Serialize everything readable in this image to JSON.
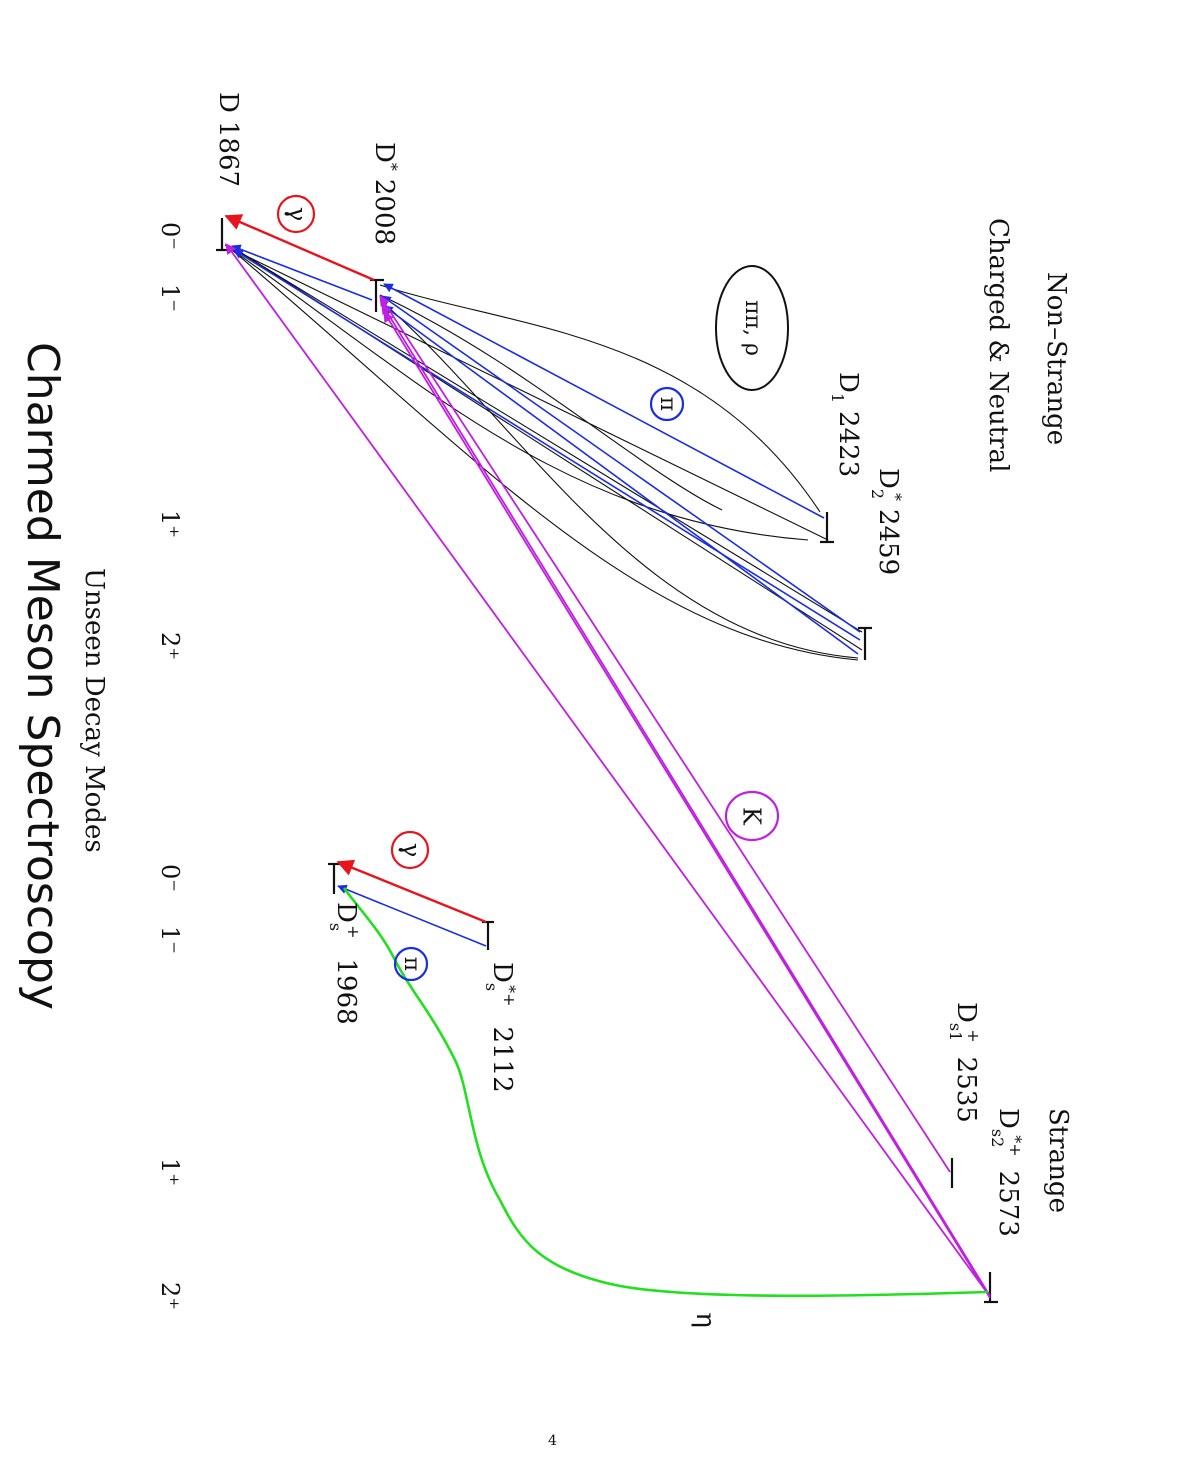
{
  "headers": {
    "nonstrange_line1": "Non–Strange",
    "nonstrange_line2": "Charged & Neutral",
    "strange": "Strange"
  },
  "title": "Charmed Meson Spectroscopy",
  "subtitle": "Unseen Decay Modes",
  "page_number": "4",
  "jp_labels": {
    "left": [
      "0⁻",
      "1⁻",
      "1⁺",
      "2⁺"
    ],
    "right": [
      "0⁻",
      "1⁻",
      "1⁺",
      "2⁺"
    ]
  },
  "states": {
    "D": {
      "name": "D",
      "mass": "1867"
    },
    "Dstar": {
      "name": "D",
      "sup": "*",
      "mass": "2008"
    },
    "D1": {
      "name": "D",
      "sub": "1",
      "mass": "2423"
    },
    "D2star": {
      "name": "D",
      "sub": "2",
      "sup": "*",
      "mass": "2459"
    },
    "Ds": {
      "name": "D",
      "sub": "s",
      "sup": "+",
      "mass": "1968"
    },
    "Dsstar": {
      "name": "D",
      "sub": "s",
      "sup": "*+",
      "mass": "2112"
    },
    "Ds1": {
      "name": "D",
      "sub": "s1",
      "sup": "+",
      "mass": "2535"
    },
    "Ds2star": {
      "name": "D",
      "sub": "s2",
      "sup": "*+",
      "mass": "2573"
    }
  },
  "annotations": {
    "gamma_ns": "γ",
    "gamma_s": "γ",
    "pi_ns": "π",
    "pi_s": "π",
    "pipi_rho": "ππ, ρ",
    "kaon": "K",
    "eta": "η"
  },
  "colors": {
    "gamma": "#e8141c",
    "pion": "#1a2ee0",
    "kaon": "#c020e0",
    "eta": "#22e01e",
    "pipi": "#111111",
    "level": "#111111"
  }
}
